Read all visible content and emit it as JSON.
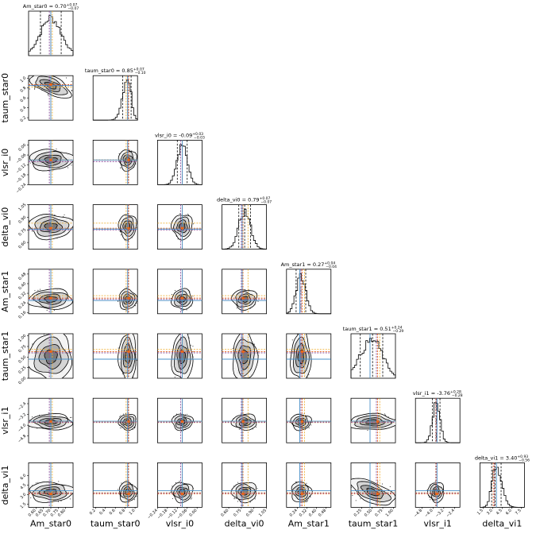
{
  "chart_data": {
    "type": "corner",
    "parameters": [
      "Am_star0",
      "taum_star0",
      "vlsr_i0",
      "delta_vi0",
      "Am_star1",
      "taum_star1",
      "vlsr_i1",
      "delta_vi1"
    ],
    "titles": [
      {
        "label": "Am_star0",
        "median": "0.70",
        "plus": "0.07",
        "minus": "0.07"
      },
      {
        "label": "taum_star0",
        "median": "0.85",
        "plus": "0.07",
        "minus": "0.10"
      },
      {
        "label": "vlsr_i0",
        "median": "-0.09",
        "plus": "0.03",
        "minus": "0.03"
      },
      {
        "label": "delta_vi0",
        "median": "0.79",
        "plus": "0.07",
        "minus": "0.07"
      },
      {
        "label": "Am_star1",
        "median": "0.27",
        "plus": "0.04",
        "minus": "0.04"
      },
      {
        "label": "taum_star1",
        "median": "0.51",
        "plus": "0.24",
        "minus": "0.29"
      },
      {
        "label": "vlsr_i1",
        "median": "-3.76",
        "plus": "0.28",
        "minus": "0.28"
      },
      {
        "label": "delta_vi1",
        "median": "3.40",
        "plus": "0.93",
        "minus": "0.56"
      }
    ],
    "ranges": [
      [
        0.55,
        0.85
      ],
      [
        0.15,
        1.05
      ],
      [
        -0.24,
        0.03
      ],
      [
        0.52,
        1.05
      ],
      [
        0.15,
        0.52
      ],
      [
        0.0,
        1.05
      ],
      [
        -5.3,
        -2.0
      ],
      [
        1.0,
        8.0
      ]
    ],
    "x_ticks": [
      [
        "0.60",
        "0.65",
        "0.70",
        "0.75",
        "0.80"
      ],
      [
        "0.2",
        "0.4",
        "0.6",
        "0.8",
        "1.0"
      ],
      [
        "-0.24",
        "-0.18",
        "-0.12",
        "-0.06",
        "0.00"
      ],
      [
        "0.60",
        "0.75",
        "0.90",
        "1.05"
      ],
      [
        "0.24",
        "0.32",
        "0.40",
        "0.48"
      ],
      [
        "0.25",
        "0.50",
        "0.75",
        "1.00"
      ],
      [
        "-4.8",
        "-4.0",
        "-3.2",
        "-2.4"
      ],
      [
        "1.5",
        "3.0",
        "4.5",
        "6.0",
        "7.5"
      ]
    ],
    "y_ticks": [
      null,
      [
        "0.2",
        "0.4",
        "0.6",
        "0.8",
        "1.0"
      ],
      [
        "-0.24",
        "-0.18",
        "-0.12",
        "-0.06",
        "0.00"
      ],
      [
        "0.60",
        "0.75",
        "0.90",
        "1.05"
      ],
      [
        "0.16",
        "0.24",
        "0.32",
        "0.40",
        "0.48"
      ],
      [
        "0.00",
        "0.25",
        "0.50",
        "0.75",
        "1.00"
      ],
      [
        "-4.8",
        "-4.0",
        "-3.2",
        "-2.4"
      ],
      [
        "1.5",
        "3.0",
        "4.5",
        "6.0"
      ]
    ],
    "medians": [
      0.7,
      0.85,
      -0.09,
      0.79,
      0.27,
      0.51,
      -3.76,
      3.4
    ],
    "lower_quantile": [
      0.63,
      0.75,
      -0.12,
      0.72,
      0.23,
      0.22,
      -4.04,
      2.84
    ],
    "upper_quantile": [
      0.77,
      0.92,
      -0.06,
      0.86,
      0.31,
      0.75,
      -3.48,
      4.33
    ],
    "truth_blue": [
      0.7,
      0.85,
      -0.09,
      0.76,
      0.26,
      0.45,
      -3.7,
      3.6
    ],
    "truth_orange": [
      0.7,
      0.87,
      -0.09,
      0.77,
      0.28,
      0.63,
      -3.72,
      3.1
    ],
    "truth_yellow": [
      0.71,
      0.82,
      -0.09,
      0.83,
      0.3,
      0.68,
      -3.8,
      3.3
    ],
    "truth_purple": [
      0.69,
      0.86,
      -0.1,
      0.75,
      0.27,
      0.6,
      -3.78,
      3.25
    ],
    "colors": {
      "blue": "#4a90c8",
      "orange": "#e8651a",
      "yellow": "#f0b43c",
      "purple": "#8b4f9e",
      "contour": "#000000",
      "fill": "#808080"
    }
  }
}
